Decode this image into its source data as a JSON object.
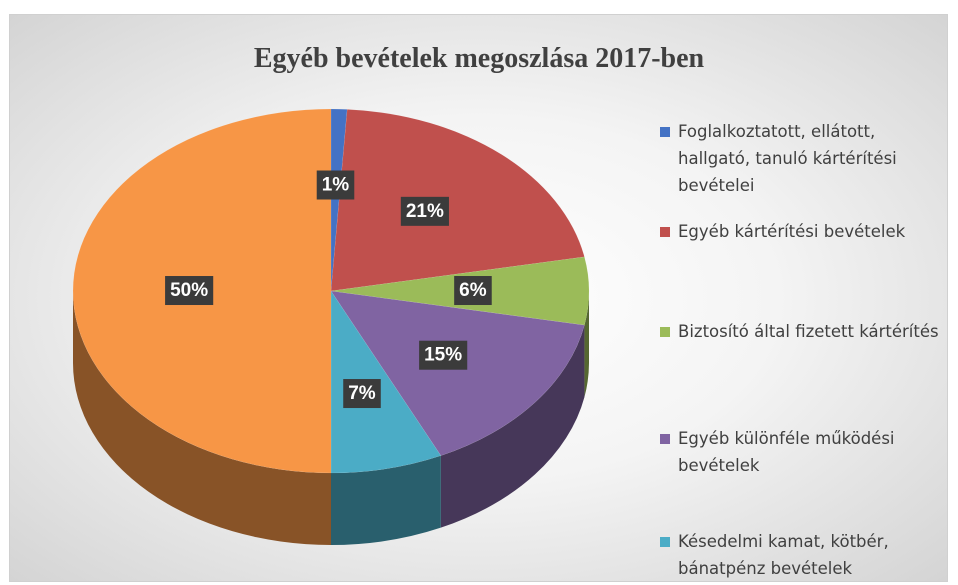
{
  "chart_data": {
    "type": "pie",
    "title": "Egyéb bevételek megoszlása 2017-ben",
    "categories": [
      "Foglalkoztatott, ellátott, hallgató, tanuló kártérítési bevételei",
      "Egyéb kártérítési bevételek",
      "Biztosító által fizetett kártérítés",
      "Egyéb különféle működési bevételek",
      "Késedelmi kamat, kötbér, bánatpénz bevételek",
      null
    ],
    "values": [
      1,
      21,
      6,
      15,
      7,
      50
    ],
    "value_labels": [
      "1%",
      "21%",
      "6%",
      "15%",
      "7%",
      "50%"
    ],
    "colors": [
      "#4472c4",
      "#c0504d",
      "#9bbb59",
      "#8064a2",
      "#4bacc6",
      "#f79646"
    ]
  }
}
